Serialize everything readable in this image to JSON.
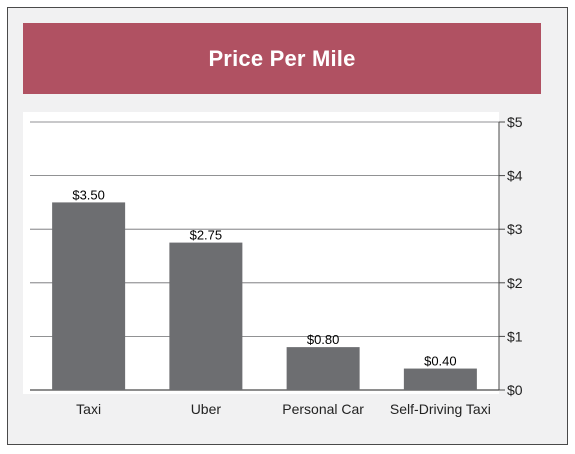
{
  "chart_data": {
    "type": "bar",
    "title": "Price Per Mile",
    "categories": [
      "Taxi",
      "Uber",
      "Personal Car",
      "Self-Driving Taxi"
    ],
    "values": [
      3.5,
      2.75,
      0.8,
      0.4
    ],
    "data_labels": [
      "$3.50",
      "$2.75",
      "$0.80",
      "$0.40"
    ],
    "yticks": [
      "$0",
      "$1",
      "$2",
      "$3",
      "$4",
      "$5"
    ],
    "ylim": [
      0,
      5
    ],
    "y_axis_side": "right",
    "grid": true,
    "legend": "none",
    "bar_color": "#6d6e71",
    "title_bg_color": "#b05162"
  }
}
